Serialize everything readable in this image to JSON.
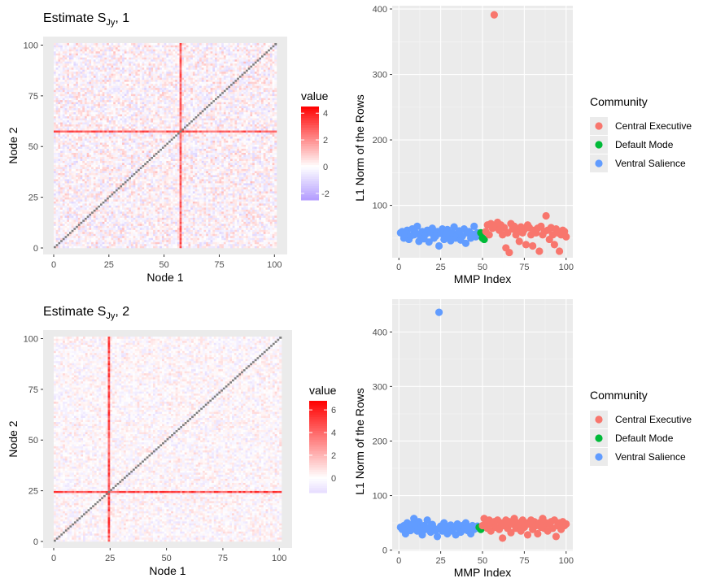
{
  "chart_data": [
    {
      "type": "heatmap",
      "title": "Estimate S",
      "title_sub": "Jy",
      "title_suffix": ", 1",
      "xlabel": "Node 1",
      "ylabel": "Node 2",
      "xticks": [
        0,
        25,
        50,
        75,
        100
      ],
      "yticks": [
        0,
        25,
        50,
        75,
        100
      ],
      "xlim": [
        0,
        101
      ],
      "ylim": [
        0,
        101
      ],
      "n": 101,
      "highlight_node": 57,
      "highlight_node_value": 3.5,
      "colorbar": {
        "title": "value",
        "ticks": [
          4,
          2,
          0,
          -2
        ],
        "range": [
          -2.5,
          4.5
        ],
        "low_color": "#b39cff",
        "mid_color": "#ffffff",
        "high_color": "#ff0000"
      }
    },
    {
      "type": "scatter",
      "xlabel": "MMP Index",
      "ylabel": "L1 Norm of the Rows",
      "xticks": [
        0,
        25,
        50,
        75,
        100
      ],
      "yticks": [
        100,
        200,
        300,
        400
      ],
      "xlim": [
        -4,
        104
      ],
      "ylim": [
        20,
        405
      ],
      "legend": {
        "title": "Community",
        "entries": [
          {
            "name": "Central Executive",
            "color": "#f8766d"
          },
          {
            "name": "Default Mode",
            "color": "#00ba38"
          },
          {
            "name": "Ventral Salience",
            "color": "#619cff"
          }
        ]
      },
      "series": [
        {
          "name": "Ventral Salience",
          "color": "#619cff",
          "x": [
            1,
            2,
            3,
            4,
            5,
            6,
            7,
            8,
            9,
            10,
            11,
            12,
            13,
            14,
            15,
            16,
            17,
            18,
            19,
            20,
            21,
            22,
            23,
            24,
            25,
            26,
            27,
            28,
            29,
            30,
            31,
            32,
            33,
            34,
            35,
            36,
            37,
            38,
            39,
            40,
            41,
            42,
            43,
            44,
            45,
            46,
            47,
            48
          ],
          "y": [
            58,
            60,
            50,
            55,
            62,
            48,
            53,
            64,
            55,
            58,
            68,
            45,
            52,
            60,
            49,
            56,
            62,
            44,
            58,
            65,
            50,
            53,
            60,
            38,
            57,
            64,
            48,
            55,
            63,
            52,
            46,
            58,
            67,
            50,
            55,
            61,
            47,
            53,
            64,
            42,
            58,
            60,
            50,
            56,
            68,
            52,
            58,
            55
          ]
        },
        {
          "name": "Default Mode",
          "color": "#00ba38",
          "x": [
            49,
            50,
            51
          ],
          "y": [
            58,
            50,
            48
          ]
        },
        {
          "name": "Central Executive",
          "color": "#f8766d",
          "x": [
            52,
            53,
            54,
            55,
            56,
            57,
            58,
            59,
            60,
            61,
            62,
            63,
            64,
            65,
            66,
            67,
            68,
            69,
            70,
            71,
            72,
            73,
            74,
            75,
            76,
            77,
            78,
            79,
            80,
            81,
            82,
            83,
            84,
            85,
            86,
            87,
            88,
            89,
            90,
            91,
            92,
            93,
            94,
            95,
            96,
            97,
            98,
            99,
            100
          ],
          "y": [
            60,
            70,
            55,
            72,
            65,
            391,
            68,
            74,
            62,
            70,
            55,
            66,
            35,
            58,
            28,
            72,
            64,
            68,
            55,
            60,
            45,
            67,
            58,
            63,
            40,
            70,
            66,
            55,
            38,
            62,
            58,
            65,
            30,
            68,
            55,
            60,
            84,
            62,
            48,
            66,
            55,
            40,
            64,
            58,
            30,
            55,
            62,
            60,
            52
          ]
        }
      ]
    },
    {
      "type": "heatmap",
      "title": "Estimate S",
      "title_sub": "Jy",
      "title_suffix": ", 2",
      "xlabel": "Node 1",
      "ylabel": "Node 2",
      "xticks": [
        0,
        25,
        50,
        75,
        100
      ],
      "yticks": [
        0,
        25,
        50,
        75,
        100
      ],
      "xlim": [
        0,
        101
      ],
      "ylim": [
        0,
        101
      ],
      "n": 101,
      "highlight_node": 24,
      "highlight_node_value": 5.8,
      "colorbar": {
        "title": "value",
        "ticks": [
          6,
          4,
          2,
          0
        ],
        "range": [
          -1.3,
          6.8
        ],
        "low_color": "#e6dcff",
        "mid_color": "#ffffff",
        "high_color": "#ff0000"
      }
    },
    {
      "type": "scatter",
      "xlabel": "MMP Index",
      "ylabel": "L1 Norm of the Rows",
      "xticks": [
        0,
        25,
        50,
        75,
        100
      ],
      "yticks": [
        0,
        100,
        200,
        300,
        400
      ],
      "xlim": [
        -4,
        104
      ],
      "ylim": [
        -2,
        460
      ],
      "legend": {
        "title": "Community",
        "entries": [
          {
            "name": "Central Executive",
            "color": "#f8766d"
          },
          {
            "name": "Default Mode",
            "color": "#00ba38"
          },
          {
            "name": "Ventral Salience",
            "color": "#619cff"
          }
        ]
      },
      "series": [
        {
          "name": "Ventral Salience",
          "color": "#619cff",
          "x": [
            1,
            2,
            3,
            4,
            5,
            6,
            7,
            8,
            9,
            10,
            11,
            12,
            13,
            14,
            15,
            16,
            17,
            18,
            19,
            20,
            21,
            22,
            23,
            24,
            25,
            26,
            27,
            28,
            29,
            30,
            31,
            32,
            33,
            34,
            35,
            36,
            37,
            38,
            39,
            40,
            41,
            42,
            43,
            44,
            45,
            46,
            47
          ],
          "y": [
            42,
            38,
            45,
            30,
            50,
            40,
            36,
            48,
            58,
            42,
            35,
            52,
            40,
            28,
            45,
            38,
            55,
            42,
            33,
            47,
            40,
            36,
            25,
            436,
            44,
            35,
            50,
            42,
            30,
            38,
            46,
            35,
            42,
            28,
            48,
            40,
            33,
            45,
            38,
            50,
            36,
            42,
            30,
            45,
            38,
            40,
            44
          ]
        },
        {
          "name": "Default Mode",
          "color": "#00ba38",
          "x": [
            48,
            49
          ],
          "y": [
            42,
            38
          ]
        },
        {
          "name": "Central Executive",
          "color": "#f8766d",
          "x": [
            50,
            51,
            52,
            53,
            54,
            55,
            56,
            57,
            58,
            59,
            60,
            61,
            62,
            63,
            64,
            65,
            66,
            67,
            68,
            69,
            70,
            71,
            72,
            73,
            74,
            75,
            76,
            77,
            78,
            79,
            80,
            81,
            82,
            83,
            84,
            85,
            86,
            87,
            88,
            89,
            90,
            91,
            92,
            93,
            94,
            95,
            96,
            97,
            98,
            99,
            100
          ],
          "y": [
            45,
            58,
            50,
            40,
            55,
            35,
            48,
            52,
            42,
            55,
            38,
            50,
            22,
            45,
            55,
            40,
            52,
            32,
            48,
            58,
            40,
            50,
            45,
            35,
            55,
            42,
            50,
            28,
            48,
            55,
            38,
            52,
            45,
            30,
            50,
            42,
            58,
            40,
            50,
            35,
            48,
            52,
            40,
            55,
            25,
            45,
            50,
            38,
            52,
            45,
            48
          ]
        }
      ]
    }
  ]
}
